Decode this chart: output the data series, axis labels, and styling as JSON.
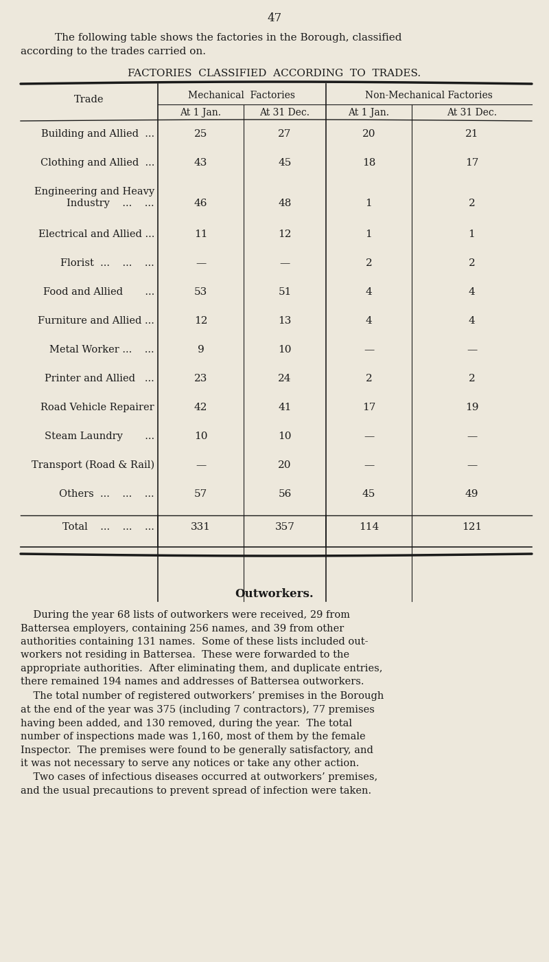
{
  "bg_color": "#ede8dc",
  "page_number": "47",
  "intro_line1": "The following table shows the factories in the Borough, classified",
  "intro_line2": "according to the trades carried on.",
  "table_title": "FACTORIES  CLASSIFIED  ACCORDING  TO  TRADES.",
  "col_headers_top": [
    "Mechanical  Factories",
    "Non-Mechanical Factories"
  ],
  "col_headers_sub": [
    "At 1 Jan.",
    "At 31 Dec.",
    "At 1 Jan.",
    "At 31 Dec."
  ],
  "col_header_main": "Trade",
  "rows": [
    [
      "Building and Allied  ...",
      "25",
      "27",
      "20",
      "21"
    ],
    [
      "Clothing and Allied  ...",
      "43",
      "45",
      "18",
      "17"
    ],
    [
      "Engineering and Heavy\n    Industry    ...    ...",
      "46",
      "48",
      "1",
      "2"
    ],
    [
      "Electrical and Allied ...",
      "11",
      "12",
      "1",
      "1"
    ],
    [
      "Florist  ...    ...    ...",
      "—",
      "—",
      "2",
      "2"
    ],
    [
      "Food and Allied       ...",
      "53",
      "51",
      "4",
      "4"
    ],
    [
      "Furniture and Allied ...",
      "12",
      "13",
      "4",
      "4"
    ],
    [
      "Metal Worker ...    ...",
      "9",
      "10",
      "—",
      "—"
    ],
    [
      "Printer and Allied   ...",
      "23",
      "24",
      "2",
      "2"
    ],
    [
      "Road Vehicle Repairer",
      "42",
      "41",
      "17",
      "19"
    ],
    [
      "Steam Laundry       ...",
      "10",
      "10",
      "—",
      "—"
    ],
    [
      "Transport (Road & Rail)",
      "—",
      "20",
      "—",
      "—"
    ],
    [
      "Others  ...    ...    ...",
      "57",
      "56",
      "45",
      "49"
    ]
  ],
  "total_row": [
    "Total    ...    ...    ...",
    "331",
    "357",
    "114",
    "121"
  ],
  "outworkers_title": "Outworkers.",
  "outworkers_indent": "    During the year 68 lists of outworkers were received, 29 from\nBattersea employers, containing 256 names, and 39 from other\nauthorities containing 131 names.  Some of these lists included out-\nworkers not residing in Battersea.  These were forwarded to the\nappropriate authorities.  After eliminating them, and duplicate entries,\nthere remained 194 names and addresses of Battersea outworkers.",
  "outworkers_para2": "    The total number of registered outworkers’ premises in the Borough\nat the end of the year was 375 (including 7 contractors), 77 premises\nhaving been added, and 130 removed, during the year.  The total\nnumber of inspections made was 1,160, most of them by the female\nInspector.  The premises were found to be generally satisfactory, and\nit was not necessary to serve any notices or take any other action.",
  "outworkers_para3": "    Two cases of infectious diseases occurred at outworkers’ premises,\nand the usual precautions to prevent spread of infection were taken."
}
